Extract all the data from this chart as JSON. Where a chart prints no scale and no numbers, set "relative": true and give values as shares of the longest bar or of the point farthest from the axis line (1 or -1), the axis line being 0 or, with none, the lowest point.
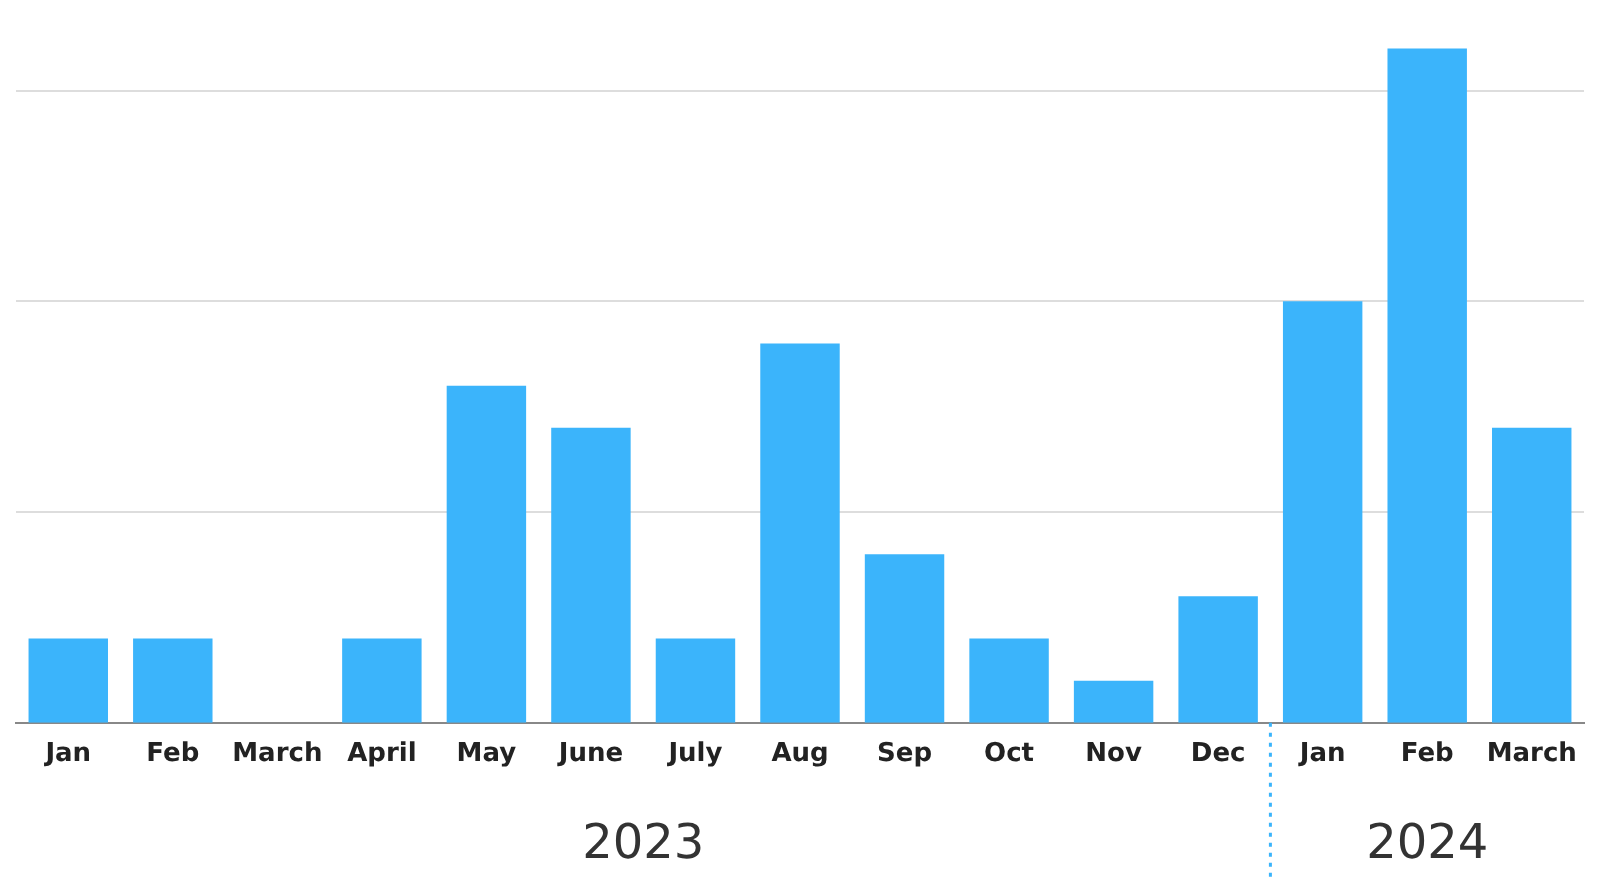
{
  "chart_data": {
    "type": "bar",
    "relative": true,
    "categories": [
      "Jan",
      "Feb",
      "March",
      "April",
      "May",
      "June",
      "July",
      "Aug",
      "Sep",
      "Oct",
      "Nov",
      "Dec",
      "Jan",
      "Feb",
      "March"
    ],
    "values": [
      0.125,
      0.125,
      0,
      0.125,
      0.5,
      0.4375,
      0.125,
      0.5625,
      0.25,
      0.125,
      0.0625,
      0.1875,
      0.625,
      1,
      0.4375
    ],
    "color": "#3bb4fb",
    "grid": "y",
    "legend": false,
    "annotations": [
      "2023",
      "2024"
    ]
  }
}
